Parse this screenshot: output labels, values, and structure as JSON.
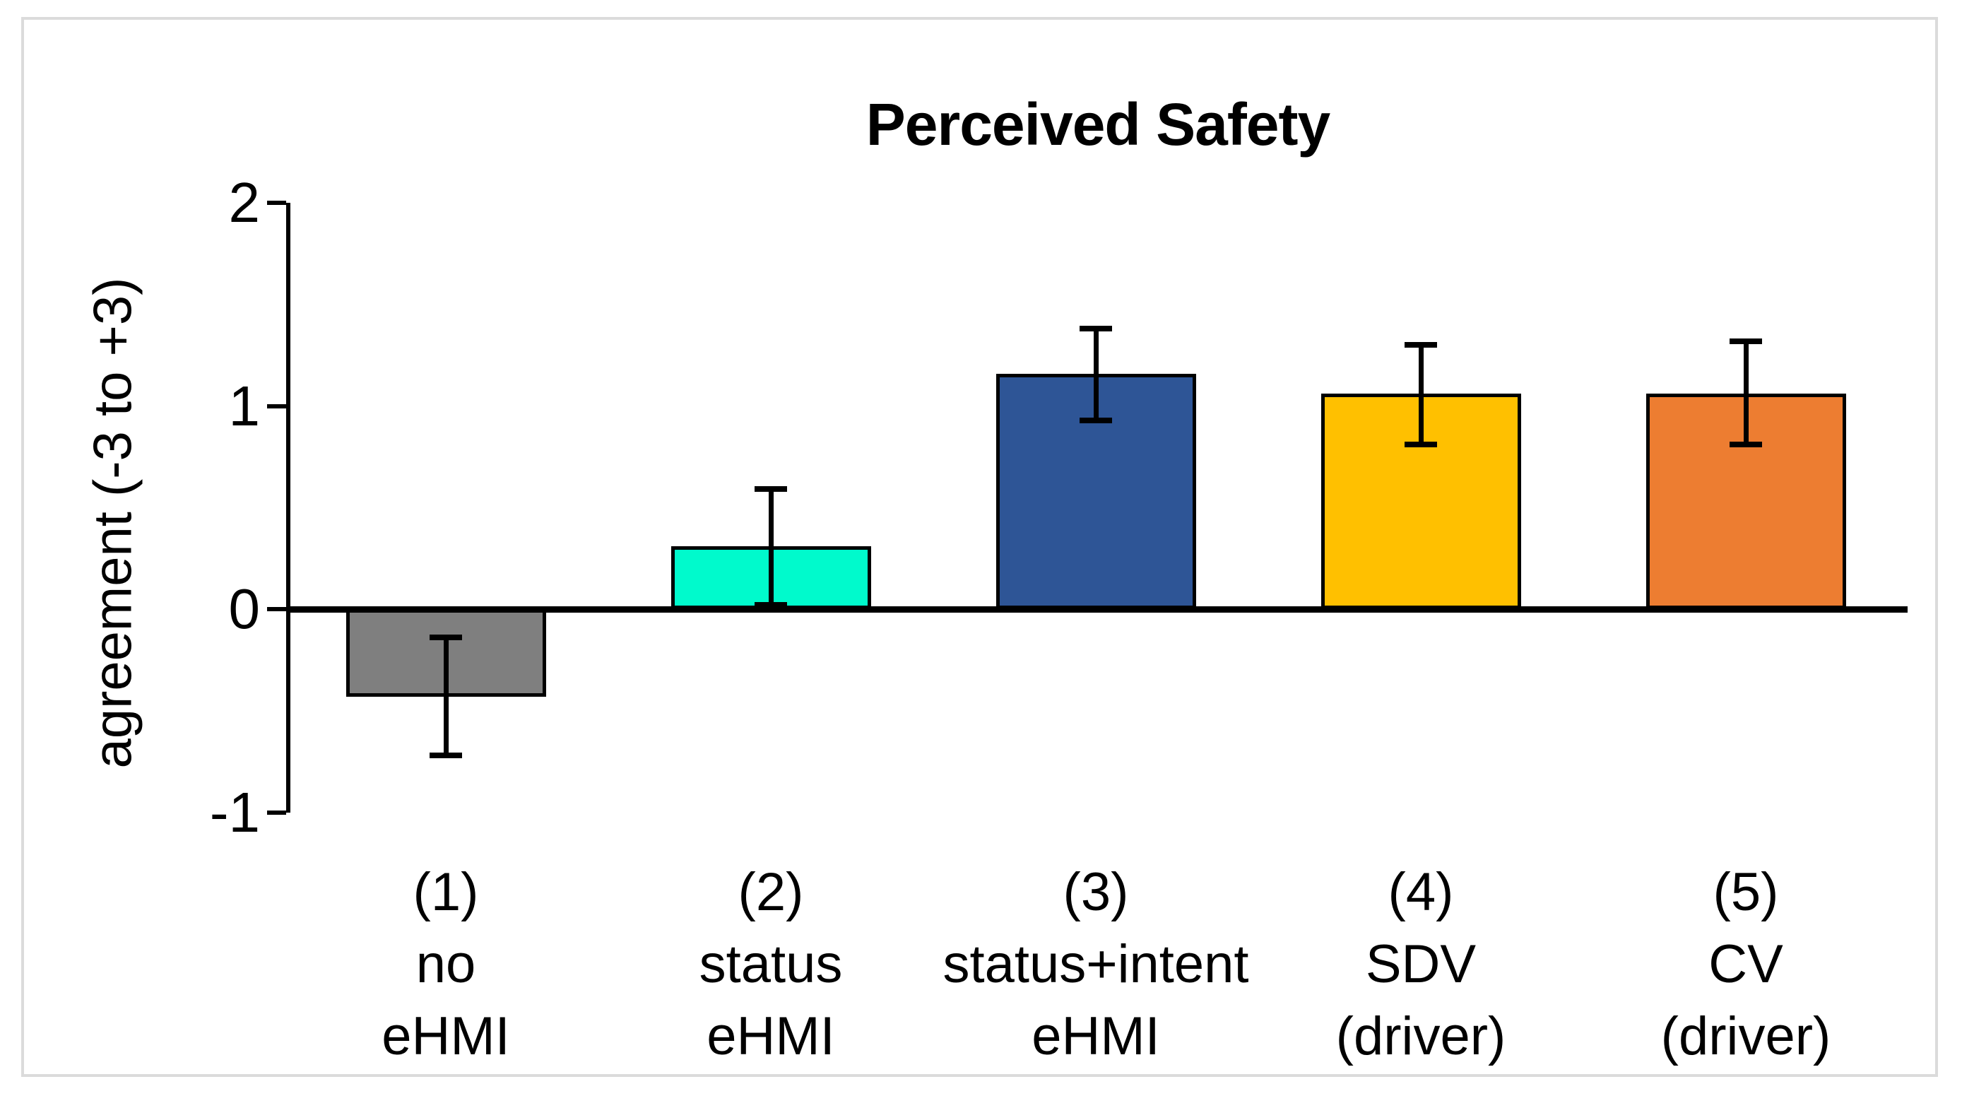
{
  "figure": {
    "border_color": "#dbdbdb",
    "background": "#ffffff"
  },
  "chart_data": {
    "type": "bar",
    "title": "Perceived Safety",
    "xlabel": "",
    "ylabel": "agreement (-3 to +3)",
    "ylim": [
      -1,
      2
    ],
    "yticks": [
      2,
      1,
      0,
      -1
    ],
    "grid": false,
    "legend": "none",
    "categories": [
      "(1) no eHMI",
      "(2) status eHMI",
      "(3) status+intent eHMI",
      "(4) SDV (driver)",
      "(5) CV (driver)"
    ],
    "category_lines": [
      [
        "(1)",
        "no",
        "eHMI"
      ],
      [
        "(2)",
        "status",
        "eHMI"
      ],
      [
        "(3)",
        "status+intent",
        "eHMI"
      ],
      [
        "(4)",
        "SDV",
        "(driver)"
      ],
      [
        "(5)",
        "CV",
        "(driver)"
      ]
    ],
    "series": [
      {
        "name": "agreement",
        "values": [
          -0.43,
          0.31,
          1.16,
          1.06,
          1.06
        ],
        "error_low": [
          -0.72,
          0.02,
          0.93,
          0.81,
          0.81
        ],
        "error_high": [
          -0.14,
          0.59,
          1.38,
          1.3,
          1.32
        ]
      }
    ],
    "bar_colors": [
      "#7f7f7f",
      "#00facc",
      "#2e5596",
      "#ffc000",
      "#ed7d31"
    ],
    "bar_outline_color": "#000000",
    "error_bar_color": "#000000",
    "axis_color": "#000000"
  }
}
